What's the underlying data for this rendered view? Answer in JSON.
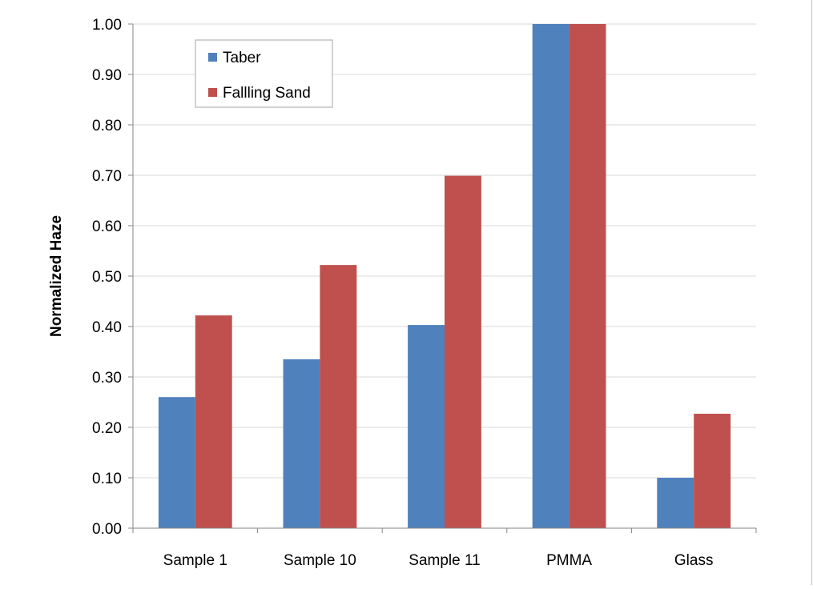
{
  "chart_data": {
    "type": "bar",
    "title": "",
    "xlabel": "",
    "ylabel": "Normalized Haze",
    "ylim": [
      0,
      1
    ],
    "ytick_step": 0.1,
    "ytick_format_decimals": 2,
    "grid": "horizontal",
    "legend_position": "top-left",
    "categories": [
      "Sample 1",
      "Sample 10",
      "Sample 11",
      "PMMA",
      "Glass"
    ],
    "series": [
      {
        "name": "Taber",
        "color": "#4f81bd",
        "values": [
          0.26,
          0.335,
          0.403,
          1.0,
          0.1
        ]
      },
      {
        "name": "Fallling Sand",
        "color": "#c0504d",
        "values": [
          0.422,
          0.522,
          0.699,
          1.0,
          0.227
        ]
      }
    ]
  }
}
